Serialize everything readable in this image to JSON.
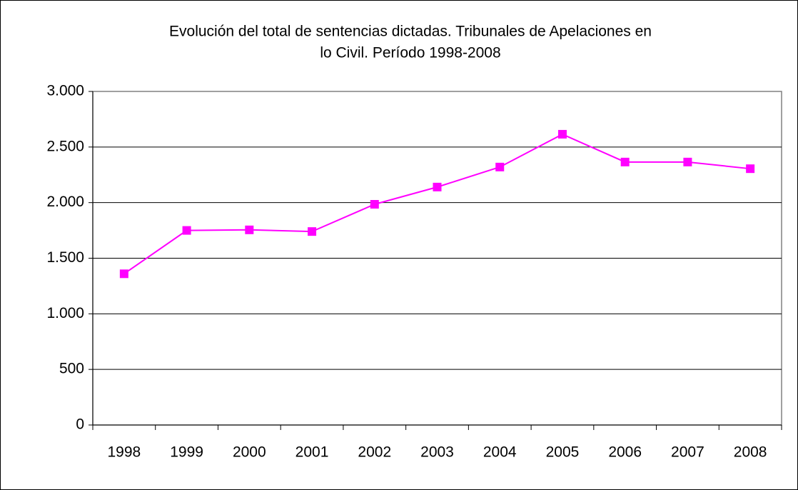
{
  "chart_data": {
    "type": "line",
    "title": [
      "Evolución del total de sentencias dictadas. Tribunales de Apelaciones en",
      "lo Civil. Período 1998-2008"
    ],
    "categories": [
      "1998",
      "1999",
      "2000",
      "2001",
      "2002",
      "2003",
      "2004",
      "2005",
      "2006",
      "2007",
      "2008"
    ],
    "series": [
      {
        "color": "#ff00ff",
        "values": [
          1360,
          1750,
          1755,
          1740,
          1985,
          2140,
          2320,
          2615,
          2365,
          2365,
          2305
        ]
      }
    ],
    "ylim": [
      0,
      3000
    ],
    "yticks": [
      0,
      500,
      {
        "value": 1000,
        "label": "1.000"
      },
      {
        "value": 1500,
        "label": "1.500"
      },
      {
        "value": 2000,
        "label": "2.000"
      },
      {
        "value": 2500,
        "label": "2.500"
      },
      {
        "value": 3000,
        "label": "3.000"
      }
    ],
    "grid": true
  }
}
